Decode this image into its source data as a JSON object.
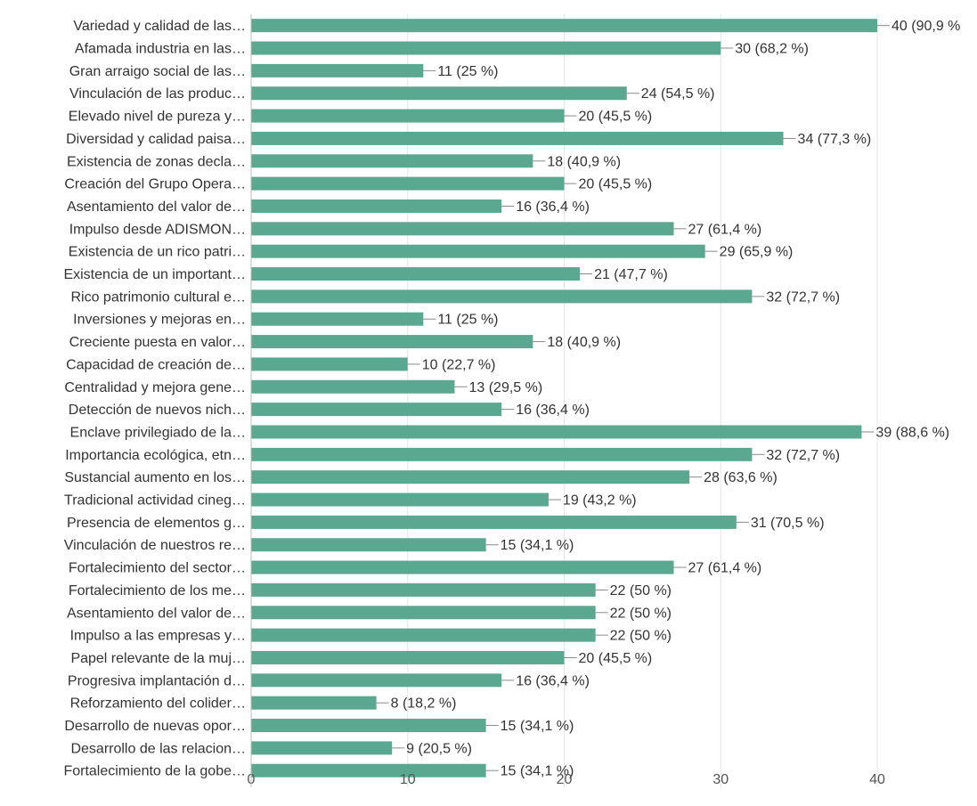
{
  "chart_data": {
    "type": "bar",
    "orientation": "horizontal",
    "categories": [
      "Variedad y calidad de las…",
      "Afamada industria en las…",
      "Gran arraigo social de las…",
      "Vinculación de las produc…",
      "Elevado nivel de pureza y…",
      "Diversidad y calidad paisa…",
      "Existencia de zonas decla…",
      "Creación del Grupo Opera…",
      "Asentamiento del valor de…",
      "Impulso desde ADISMON…",
      "Existencia de un rico patri…",
      "Existencia de un important…",
      "Rico patrimonio cultural e…",
      "Inversiones y mejoras en…",
      "Creciente puesta en valor…",
      "Capacidad de creación de…",
      "Centralidad y mejora gene…",
      "Detección de nuevos nich…",
      "Enclave privilegiado de la…",
      "Importancia ecológica, etn…",
      "Sustancial aumento en los…",
      "Tradicional actividad cineg…",
      "Presencia de elementos g…",
      "Vinculación de nuestros re…",
      "Fortalecimiento del sector…",
      "Fortalecimiento de los me…",
      "Asentamiento del valor de…",
      "Impulso a las empresas y…",
      "Papel relevante de la muj…",
      "Progresiva implantación d…",
      "Reforzamiento del colider…",
      "Desarrollo de nuevas opor…",
      "Desarrollo de las relacion…",
      "Fortalecimiento de la gobe…"
    ],
    "values": [
      40,
      30,
      11,
      24,
      20,
      34,
      18,
      20,
      16,
      27,
      29,
      21,
      32,
      11,
      18,
      10,
      13,
      16,
      39,
      32,
      28,
      19,
      31,
      15,
      27,
      22,
      22,
      22,
      20,
      16,
      8,
      15,
      9,
      15
    ],
    "data_labels": [
      "40 (90,9 %",
      "30 (68,2 %)",
      "11 (25 %)",
      "24 (54,5 %)",
      "20 (45,5 %)",
      "34 (77,3 %)",
      "18 (40,9 %)",
      "20 (45,5 %)",
      "16 (36,4 %)",
      "27 (61,4 %)",
      "29 (65,9 %)",
      "21 (47,7 %)",
      "32 (72,7 %)",
      "11 (25 %)",
      "18 (40,9 %)",
      "10 (22,7 %)",
      "13 (29,5 %)",
      "16 (36,4 %)",
      "39 (88,6 %)",
      "32 (72,7 %)",
      "28 (63,6 %)",
      "19 (43,2 %)",
      "31 (70,5 %)",
      "15 (34,1 %)",
      "27 (61,4 %)",
      "22 (50 %)",
      "22 (50 %)",
      "22 (50 %)",
      "20 (45,5 %)",
      "16 (36,4 %)",
      "8 (18,2 %)",
      "15 (34,1 %)",
      "9 (20,5 %)",
      "15 (34,1 %)"
    ],
    "xlim": [
      0,
      40
    ],
    "xticks": [
      0,
      10,
      20,
      30,
      40
    ],
    "xtick_labels": [
      "0",
      "10",
      "20",
      "30",
      "40"
    ],
    "grid": true,
    "bar_color": "#5aa890",
    "grid_color": "#e6e6e6",
    "text_color": "#333333"
  }
}
